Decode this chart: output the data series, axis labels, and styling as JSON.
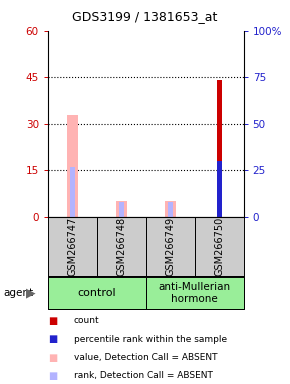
{
  "title": "GDS3199 / 1381653_at",
  "categories": [
    "GSM266747",
    "GSM266748",
    "GSM266749",
    "GSM266750"
  ],
  "count_values": [
    0,
    0,
    0,
    44
  ],
  "percentile_rank_values": [
    0,
    0,
    0,
    30
  ],
  "absent_value_values": [
    33,
    5,
    5,
    0
  ],
  "absent_rank_values": [
    27,
    8,
    8,
    0
  ],
  "ylim_left": [
    0,
    60
  ],
  "ylim_right": [
    0,
    100
  ],
  "yticks_left": [
    0,
    15,
    30,
    45,
    60
  ],
  "yticks_right": [
    0,
    25,
    50,
    75,
    100
  ],
  "ytick_labels_left": [
    "0",
    "15",
    "30",
    "45",
    "60"
  ],
  "ytick_labels_right": [
    "0",
    "25",
    "50",
    "75",
    "100%"
  ],
  "count_color": "#cc0000",
  "percentile_color": "#2222cc",
  "absent_value_color": "#ffb3b3",
  "absent_rank_color": "#b3b3ff",
  "legend": [
    {
      "label": "count",
      "color": "#cc0000"
    },
    {
      "label": "percentile rank within the sample",
      "color": "#2222cc"
    },
    {
      "label": "value, Detection Call = ABSENT",
      "color": "#ffb3b3"
    },
    {
      "label": "rank, Detection Call = ABSENT",
      "color": "#b3b3ff"
    }
  ],
  "agent_label": "agent",
  "left_axis_color": "#cc0000",
  "right_axis_color": "#2222cc",
  "label_area_color": "#cccccc",
  "group_area_color": "#99ee99",
  "plot_bg_color": "#ffffff"
}
